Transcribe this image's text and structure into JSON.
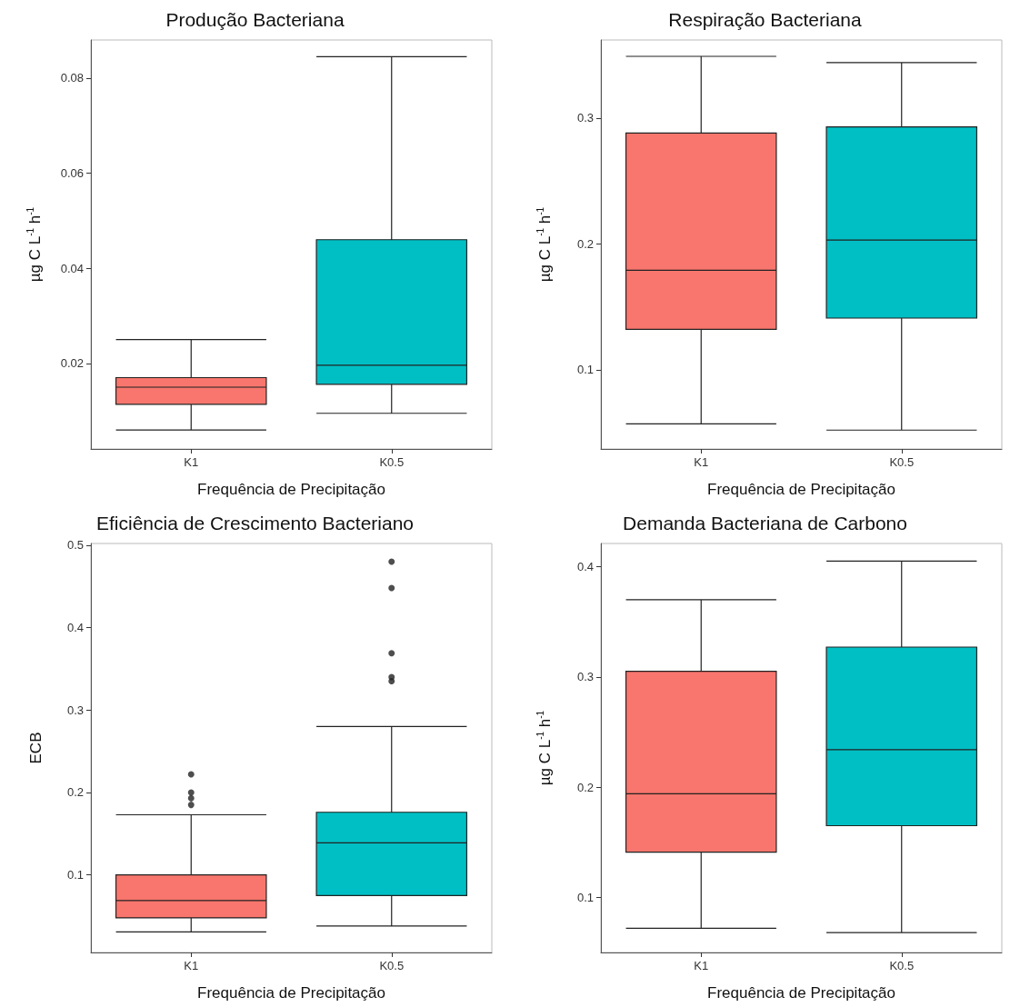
{
  "chart_data": [
    {
      "type": "box",
      "title": "Produção Bacteriana",
      "xlabel": "Frequência de Precipitação",
      "ylabel": "µg C L$^{-1}$ h$^{-1}$",
      "categories": [
        "K1",
        "K0.5"
      ],
      "colors": [
        "#f8766d",
        "#00bfc4"
      ],
      "boxes": [
        {
          "low": 0.006,
          "q1": 0.0114,
          "median": 0.015,
          "q3": 0.017,
          "high": 0.025
        },
        {
          "low": 0.0095,
          "q1": 0.0156,
          "median": 0.0196,
          "q3": 0.046,
          "high": 0.0845
        }
      ],
      "ylim": [
        0.002,
        0.088
      ],
      "yticks": [
        0.02,
        0.04,
        0.06,
        0.08
      ],
      "grid": false
    },
    {
      "type": "box",
      "title": "Respiração Bacteriana",
      "xlabel": "Frequência de Precipitação",
      "ylabel": "µg C L$^{-1}$ h$^{-1}$",
      "categories": [
        "K1",
        "K0.5"
      ],
      "colors": [
        "#f8766d",
        "#00bfc4"
      ],
      "boxes": [
        {
          "low": 0.057,
          "q1": 0.132,
          "median": 0.179,
          "q3": 0.288,
          "high": 0.349
        },
        {
          "low": 0.052,
          "q1": 0.141,
          "median": 0.203,
          "q3": 0.293,
          "high": 0.344
        }
      ],
      "ylim": [
        0.037,
        0.362
      ],
      "yticks": [
        0.1,
        0.2,
        0.3
      ],
      "grid": false
    },
    {
      "type": "box",
      "title": "Eficiência de Crescimento Bacteriano",
      "xlabel": "Frequência de Precipitação",
      "ylabel": "ECB",
      "categories": [
        "K1",
        "K0.5"
      ],
      "colors": [
        "#f8766d",
        "#00bfc4"
      ],
      "boxes": [
        {
          "low": 0.031,
          "q1": 0.048,
          "median": 0.069,
          "q3": 0.1,
          "high": 0.173,
          "outliers": [
            0.185,
            0.193,
            0.2,
            0.222
          ]
        },
        {
          "low": 0.038,
          "q1": 0.075,
          "median": 0.139,
          "q3": 0.176,
          "high": 0.28,
          "outliers": [
            0.335,
            0.34,
            0.369,
            0.448,
            0.48
          ]
        }
      ],
      "ylim": [
        0.006,
        0.502
      ],
      "yticks": [
        0.1,
        0.2,
        0.3,
        0.4,
        0.5
      ],
      "grid": false
    },
    {
      "type": "box",
      "title": "Demanda Bacteriana de Carbono",
      "xlabel": "Frequência de Precipitação",
      "ylabel": "µg C L$^{-1}$ h$^{-1}$",
      "categories": [
        "K1",
        "K0.5"
      ],
      "colors": [
        "#f8766d",
        "#00bfc4"
      ],
      "boxes": [
        {
          "low": 0.072,
          "q1": 0.141,
          "median": 0.194,
          "q3": 0.305,
          "high": 0.37
        },
        {
          "low": 0.068,
          "q1": 0.165,
          "median": 0.234,
          "q3": 0.327,
          "high": 0.405
        }
      ],
      "ylim": [
        0.05,
        0.421
      ],
      "yticks": [
        0.1,
        0.2,
        0.3,
        0.4
      ],
      "grid": false
    }
  ]
}
